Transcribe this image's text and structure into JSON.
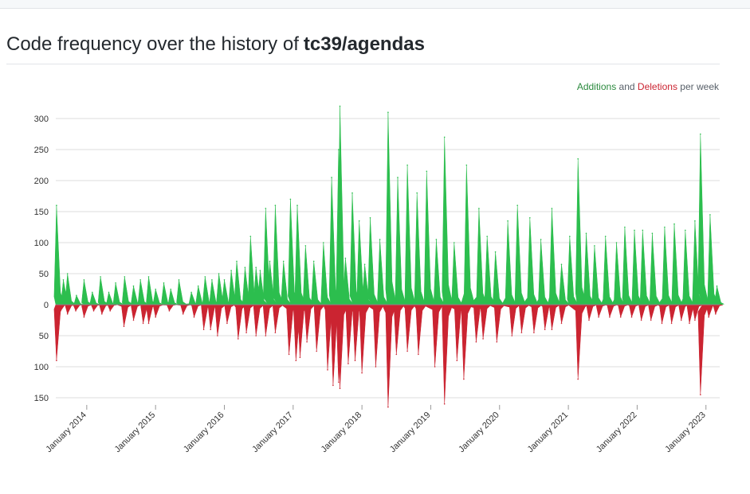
{
  "page": {
    "title_prefix": "Code frequency over the history of",
    "repo": "tc39/agendas"
  },
  "legend": {
    "additions": "Additions",
    "and": "and",
    "deletions": "Deletions",
    "suffix": "per week"
  },
  "colors": {
    "additions": "#2cbe4e",
    "deletions": "#cb2431",
    "grid": "#dddddd"
  },
  "chart_data": {
    "type": "area",
    "title": "Code frequency over the history of tc39/agendas",
    "xlabel": "",
    "ylabel": "",
    "ylim": [
      -160,
      325
    ],
    "y_ticks": [
      {
        "value": 300,
        "label": "300"
      },
      {
        "value": 250,
        "label": "250"
      },
      {
        "value": 200,
        "label": "200"
      },
      {
        "value": 150,
        "label": "150"
      },
      {
        "value": 100,
        "label": "100"
      },
      {
        "value": 50,
        "label": "50"
      },
      {
        "value": 0,
        "label": "0"
      },
      {
        "value": -50,
        "label": "50"
      },
      {
        "value": -100,
        "label": "100"
      },
      {
        "value": -150,
        "label": "150"
      }
    ],
    "x_range": [
      2013.55,
      2023.2
    ],
    "x_ticks": [
      {
        "value": 2014,
        "label": "January 2014"
      },
      {
        "value": 2015,
        "label": "January 2015"
      },
      {
        "value": 2016,
        "label": "January 2016"
      },
      {
        "value": 2017,
        "label": "January 2017"
      },
      {
        "value": 2018,
        "label": "January 2018"
      },
      {
        "value": 2019,
        "label": "January 2019"
      },
      {
        "value": 2020,
        "label": "January 2020"
      },
      {
        "value": 2021,
        "label": "January 2021"
      },
      {
        "value": 2022,
        "label": "January 2022"
      },
      {
        "value": 2023,
        "label": "January 2023"
      }
    ],
    "series": [
      {
        "name": "Additions",
        "points": [
          [
            2013.56,
            160
          ],
          [
            2013.58,
            45
          ],
          [
            2013.66,
            40
          ],
          [
            2013.72,
            50
          ],
          [
            2013.85,
            15
          ],
          [
            2013.96,
            40
          ],
          [
            2014.08,
            20
          ],
          [
            2014.2,
            45
          ],
          [
            2014.32,
            20
          ],
          [
            2014.42,
            35
          ],
          [
            2014.55,
            45
          ],
          [
            2014.68,
            30
          ],
          [
            2014.78,
            40
          ],
          [
            2014.9,
            45
          ],
          [
            2015.0,
            25
          ],
          [
            2015.12,
            35
          ],
          [
            2015.22,
            25
          ],
          [
            2015.34,
            40
          ],
          [
            2015.52,
            20
          ],
          [
            2015.62,
            30
          ],
          [
            2015.72,
            45
          ],
          [
            2015.82,
            40
          ],
          [
            2015.92,
            50
          ],
          [
            2016.0,
            40
          ],
          [
            2016.1,
            55
          ],
          [
            2016.18,
            70
          ],
          [
            2016.3,
            60
          ],
          [
            2016.38,
            110
          ],
          [
            2016.46,
            60
          ],
          [
            2016.52,
            55
          ],
          [
            2016.6,
            155
          ],
          [
            2016.66,
            70
          ],
          [
            2016.74,
            160
          ],
          [
            2016.86,
            70
          ],
          [
            2016.96,
            170
          ],
          [
            2017.06,
            160
          ],
          [
            2017.18,
            95
          ],
          [
            2017.3,
            70
          ],
          [
            2017.44,
            100
          ],
          [
            2017.56,
            205
          ],
          [
            2017.66,
            250
          ],
          [
            2017.68,
            320
          ],
          [
            2017.76,
            75
          ],
          [
            2017.86,
            180
          ],
          [
            2017.96,
            135
          ],
          [
            2018.04,
            65
          ],
          [
            2018.12,
            140
          ],
          [
            2018.26,
            105
          ],
          [
            2018.38,
            310
          ],
          [
            2018.52,
            205
          ],
          [
            2018.66,
            225
          ],
          [
            2018.8,
            180
          ],
          [
            2018.94,
            215
          ],
          [
            2019.08,
            105
          ],
          [
            2019.2,
            270
          ],
          [
            2019.34,
            100
          ],
          [
            2019.52,
            225
          ],
          [
            2019.7,
            155
          ],
          [
            2019.82,
            110
          ],
          [
            2019.94,
            85
          ],
          [
            2020.12,
            135
          ],
          [
            2020.26,
            160
          ],
          [
            2020.44,
            140
          ],
          [
            2020.6,
            105
          ],
          [
            2020.76,
            155
          ],
          [
            2020.9,
            65
          ],
          [
            2021.02,
            110
          ],
          [
            2021.14,
            235
          ],
          [
            2021.26,
            115
          ],
          [
            2021.38,
            95
          ],
          [
            2021.54,
            110
          ],
          [
            2021.7,
            100
          ],
          [
            2021.82,
            125
          ],
          [
            2021.96,
            120
          ],
          [
            2022.08,
            120
          ],
          [
            2022.22,
            115
          ],
          [
            2022.4,
            125
          ],
          [
            2022.54,
            130
          ],
          [
            2022.7,
            120
          ],
          [
            2022.84,
            135
          ],
          [
            2022.92,
            275
          ],
          [
            2023.06,
            145
          ],
          [
            2023.16,
            30
          ]
        ]
      },
      {
        "name": "Deletions",
        "points": [
          [
            2013.56,
            -90
          ],
          [
            2013.62,
            -10
          ],
          [
            2013.72,
            -15
          ],
          [
            2013.84,
            -10
          ],
          [
            2013.96,
            -20
          ],
          [
            2014.1,
            -10
          ],
          [
            2014.22,
            -15
          ],
          [
            2014.34,
            -10
          ],
          [
            2014.54,
            -35
          ],
          [
            2014.68,
            -25
          ],
          [
            2014.82,
            -30
          ],
          [
            2014.9,
            -30
          ],
          [
            2015.0,
            -20
          ],
          [
            2015.2,
            -10
          ],
          [
            2015.4,
            -15
          ],
          [
            2015.56,
            -20
          ],
          [
            2015.7,
            -40
          ],
          [
            2015.8,
            -40
          ],
          [
            2015.9,
            -50
          ],
          [
            2016.04,
            -30
          ],
          [
            2016.2,
            -55
          ],
          [
            2016.32,
            -45
          ],
          [
            2016.46,
            -50
          ],
          [
            2016.6,
            -50
          ],
          [
            2016.74,
            -45
          ],
          [
            2016.94,
            -80
          ],
          [
            2017.04,
            -90
          ],
          [
            2017.1,
            -85
          ],
          [
            2017.2,
            -60
          ],
          [
            2017.34,
            -75
          ],
          [
            2017.5,
            -105
          ],
          [
            2017.58,
            -130
          ],
          [
            2017.66,
            -125
          ],
          [
            2017.68,
            -135
          ],
          [
            2017.8,
            -95
          ],
          [
            2017.9,
            -90
          ],
          [
            2018.0,
            -110
          ],
          [
            2018.2,
            -100
          ],
          [
            2018.38,
            -165
          ],
          [
            2018.5,
            -80
          ],
          [
            2018.66,
            -75
          ],
          [
            2018.82,
            -80
          ],
          [
            2019.06,
            -100
          ],
          [
            2019.2,
            -160
          ],
          [
            2019.38,
            -90
          ],
          [
            2019.48,
            -120
          ],
          [
            2019.66,
            -60
          ],
          [
            2019.76,
            -55
          ],
          [
            2019.96,
            -60
          ],
          [
            2020.18,
            -50
          ],
          [
            2020.32,
            -45
          ],
          [
            2020.5,
            -45
          ],
          [
            2020.66,
            -40
          ],
          [
            2020.76,
            -40
          ],
          [
            2020.9,
            -30
          ],
          [
            2021.14,
            -120
          ],
          [
            2021.3,
            -25
          ],
          [
            2021.44,
            -20
          ],
          [
            2021.6,
            -20
          ],
          [
            2021.76,
            -20
          ],
          [
            2021.92,
            -20
          ],
          [
            2022.06,
            -25
          ],
          [
            2022.2,
            -25
          ],
          [
            2022.36,
            -30
          ],
          [
            2022.5,
            -30
          ],
          [
            2022.64,
            -25
          ],
          [
            2022.76,
            -30
          ],
          [
            2022.84,
            -25
          ],
          [
            2022.92,
            -145
          ],
          [
            2023.04,
            -20
          ],
          [
            2023.14,
            -15
          ]
        ]
      }
    ]
  }
}
